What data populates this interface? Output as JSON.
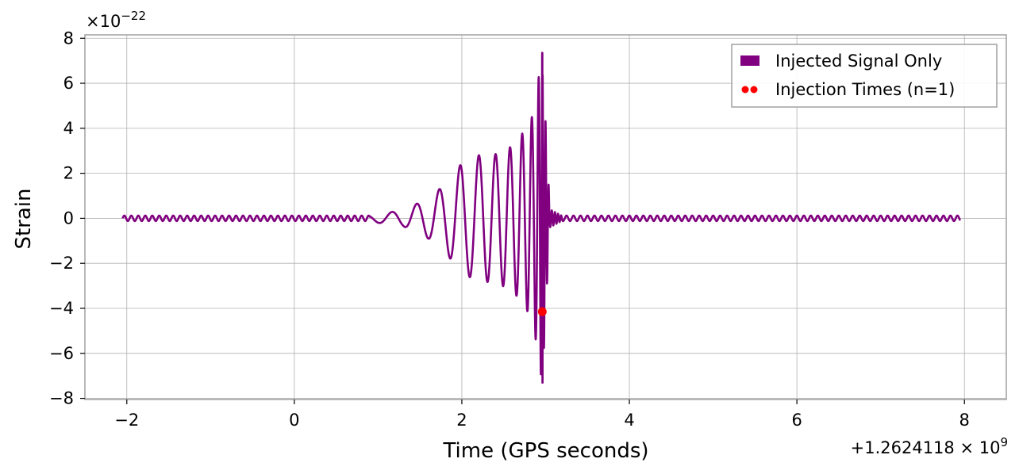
{
  "chart_data": {
    "type": "line",
    "xlabel": "Time (GPS seconds)",
    "ylabel": "Strain",
    "x_offset_label": "+1.2624118 × 10",
    "x_offset_exp": "9",
    "y_scale_label": "×10",
    "y_scale_exp": "−22",
    "xlim": [
      -2.5,
      8.5
    ],
    "ylim": [
      -8.05,
      8.15
    ],
    "x_ticks": [
      -2,
      0,
      2,
      4,
      6,
      8
    ],
    "x_tick_labels": [
      "−2",
      "0",
      "2",
      "4",
      "6",
      "8"
    ],
    "y_ticks": [
      -8,
      -6,
      -4,
      -2,
      0,
      2,
      4,
      6,
      8
    ],
    "y_tick_labels": [
      "−8",
      "−6",
      "−4",
      "−2",
      "0",
      "2",
      "4",
      "6",
      "8"
    ],
    "grid": true,
    "legend_position": "top-right",
    "series": [
      {
        "name": "Injected Signal Only",
        "kind": "line",
        "color": "#800080",
        "x_range": [
          -2.05,
          7.95
        ],
        "merger_time": 2.96,
        "peak_strain": 7.35,
        "min_strain": -7.3,
        "background_amplitude": 0.12,
        "envelope": [
          {
            "t": 0.9,
            "amp": 0.15
          },
          {
            "t": 1.3,
            "amp": 0.35
          },
          {
            "t": 1.6,
            "amp": 0.9
          },
          {
            "t": 1.8,
            "amp": 1.5
          },
          {
            "t": 2.0,
            "amp": 2.45
          },
          {
            "t": 2.2,
            "amp": 2.8
          },
          {
            "t": 2.4,
            "amp": 2.85
          },
          {
            "t": 2.6,
            "amp": 3.2
          },
          {
            "t": 2.75,
            "amp": 3.9
          },
          {
            "t": 2.85,
            "amp": 4.6
          },
          {
            "t": 2.96,
            "amp": 7.35
          },
          {
            "t": 3.05,
            "amp": 0.4
          },
          {
            "t": 3.2,
            "amp": 0.1
          }
        ]
      },
      {
        "name": "Injection Times (n=1)",
        "kind": "scatter",
        "color": "#ff0000",
        "points": [
          {
            "x": 2.96,
            "y": -4.15
          }
        ]
      }
    ]
  }
}
